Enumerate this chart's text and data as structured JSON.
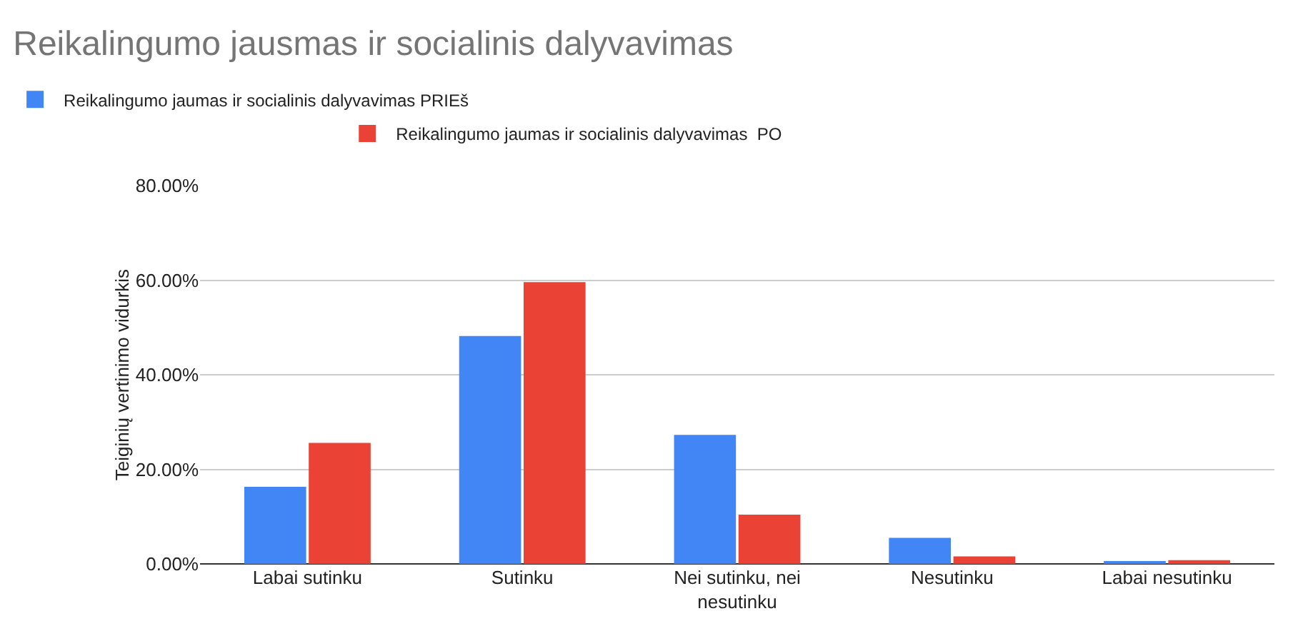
{
  "chart_data": {
    "type": "bar",
    "title": "Reikalingumo jausmas ir socialinis dalyvavimas",
    "ylabel": "Teiginių vertinimo vidurkis",
    "categories": [
      "Labai sutinku",
      "Sutinku",
      "Nei sutinku, nei nesutinku",
      "Nesutinku",
      "Labai nesutinku"
    ],
    "series": [
      {
        "name": "Reikalingumo jaumas ir socialinis dalyvavimas PRIEš",
        "color": "#4285f4",
        "values": [
          16.3,
          48.2,
          27.3,
          5.5,
          0.6
        ]
      },
      {
        "name": "Reikalingumo jaumas ir socialinis dalyvavimas  PO",
        "color": "#ea4335",
        "values": [
          25.6,
          59.6,
          10.4,
          1.6,
          0.8
        ]
      }
    ],
    "ylim": [
      0,
      80
    ],
    "yticks": [
      {
        "value": 0,
        "label": "0.00%"
      },
      {
        "value": 20,
        "label": "20.00%"
      },
      {
        "value": 40,
        "label": "40.00%"
      },
      {
        "value": 60,
        "label": "60.00%"
      },
      {
        "value": 80,
        "label": "80.00%"
      }
    ],
    "grid": "y",
    "legend": "top"
  }
}
